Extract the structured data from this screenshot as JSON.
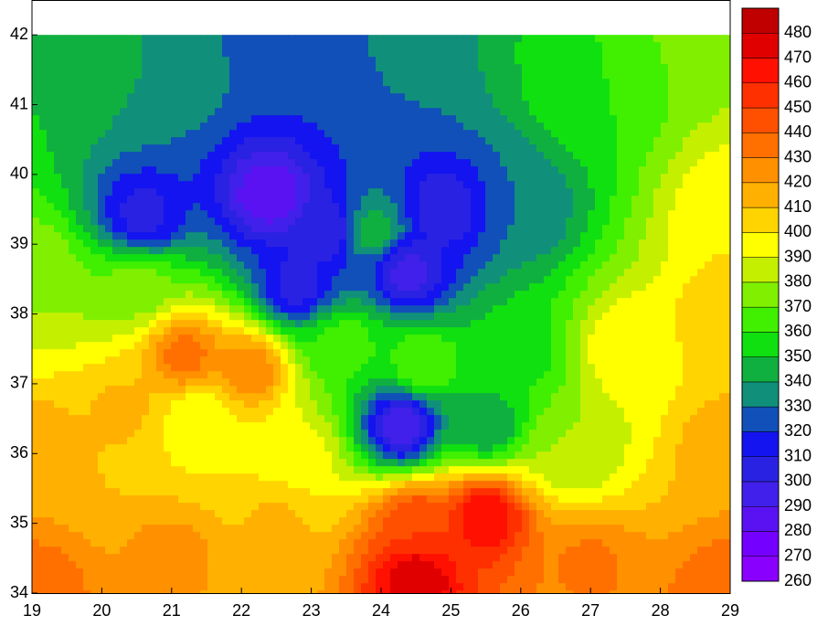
{
  "chart_data": {
    "type": "contour",
    "xlim": [
      19,
      29
    ],
    "ylim": [
      34,
      42.5
    ],
    "xticks": [
      19,
      20,
      21,
      22,
      23,
      24,
      25,
      26,
      27,
      28,
      29
    ],
    "yticks": [
      34,
      35,
      36,
      37,
      38,
      39,
      40,
      41,
      42
    ],
    "field_ylim": [
      34,
      42
    ],
    "levels": [
      260,
      270,
      280,
      290,
      300,
      310,
      320,
      330,
      340,
      350,
      360,
      370,
      380,
      390,
      400,
      410,
      420,
      430,
      440,
      450,
      460,
      470,
      480
    ],
    "colors": [
      "#8a00ff",
      "#7400ff",
      "#5a12f2",
      "#4020ea",
      "#2a22e2",
      "#1414f0",
      "#1050b8",
      "#10907a",
      "#10b040",
      "#10e010",
      "#40f000",
      "#80f000",
      "#c4f000",
      "#ffff00",
      "#ffd400",
      "#ffb000",
      "#ff9000",
      "#ff7000",
      "#ff5000",
      "#ff3000",
      "#ff1000",
      "#e00000",
      "#c00000"
    ],
    "samples": [
      {
        "x": 22.4,
        "y": 39.7,
        "value": 280
      },
      {
        "x": 20.6,
        "y": 39.4,
        "value": 305
      },
      {
        "x": 24.9,
        "y": 39.5,
        "value": 300
      },
      {
        "x": 24.4,
        "y": 38.6,
        "value": 295
      },
      {
        "x": 22.8,
        "y": 38.4,
        "value": 305
      },
      {
        "x": 23.2,
        "y": 39.2,
        "value": 300
      },
      {
        "x": 24.3,
        "y": 36.4,
        "value": 290
      },
      {
        "x": 23.9,
        "y": 39.2,
        "value": 345
      },
      {
        "x": 24.6,
        "y": 37.3,
        "value": 370
      },
      {
        "x": 24.5,
        "y": 34.2,
        "value": 480
      },
      {
        "x": 25.5,
        "y": 35.1,
        "value": 470
      },
      {
        "x": 24.5,
        "y": 35.0,
        "value": 450
      },
      {
        "x": 21.4,
        "y": 36.5,
        "value": 390
      },
      {
        "x": 20.3,
        "y": 36.6,
        "value": 412
      },
      {
        "x": 21.2,
        "y": 37.4,
        "value": 435
      },
      {
        "x": 22.1,
        "y": 37.2,
        "value": 430
      },
      {
        "x": 19,
        "y": 34,
        "value": 440
      },
      {
        "x": 19,
        "y": 36,
        "value": 420
      },
      {
        "x": 19,
        "y": 38.6,
        "value": 380
      },
      {
        "x": 19,
        "y": 41.5,
        "value": 350
      },
      {
        "x": 21,
        "y": 41.6,
        "value": 340
      },
      {
        "x": 22.5,
        "y": 41.8,
        "value": 320
      },
      {
        "x": 24,
        "y": 41.6,
        "value": 330
      },
      {
        "x": 27,
        "y": 41.2,
        "value": 360
      },
      {
        "x": 29,
        "y": 42,
        "value": 380
      },
      {
        "x": 29,
        "y": 39.5,
        "value": 400
      },
      {
        "x": 29,
        "y": 38,
        "value": 410
      },
      {
        "x": 29,
        "y": 36,
        "value": 420
      },
      {
        "x": 29,
        "y": 34,
        "value": 440
      },
      {
        "x": 26,
        "y": 39.5,
        "value": 330
      },
      {
        "x": 26,
        "y": 37.5,
        "value": 355
      },
      {
        "x": 26.7,
        "y": 36,
        "value": 380
      },
      {
        "x": 27.5,
        "y": 37.5,
        "value": 400
      },
      {
        "x": 23.5,
        "y": 37.6,
        "value": 365
      },
      {
        "x": 22.8,
        "y": 36,
        "value": 395
      },
      {
        "x": 22.5,
        "y": 35,
        "value": 412
      },
      {
        "x": 21,
        "y": 34.5,
        "value": 425
      },
      {
        "x": 27,
        "y": 34.4,
        "value": 432
      },
      {
        "x": 20.5,
        "y": 38.4,
        "value": 375
      },
      {
        "x": 25.5,
        "y": 36.4,
        "value": 340
      }
    ]
  }
}
